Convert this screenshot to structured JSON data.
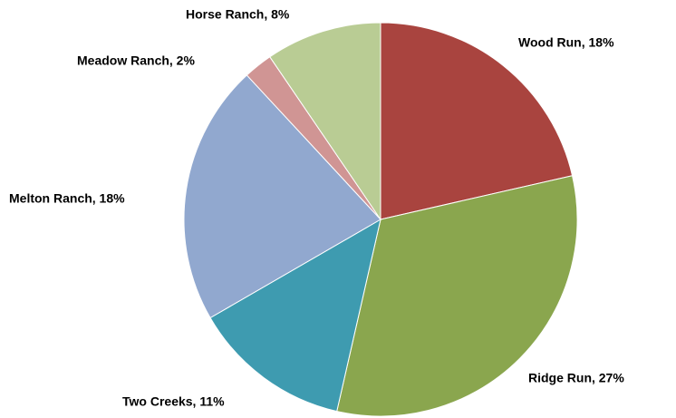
{
  "chart_data": {
    "type": "pie",
    "values": [
      18,
      27,
      11,
      18,
      2,
      8
    ],
    "value_labels": [
      "Wood Run, 18%",
      "Ridge Run, 27%",
      "Two Creeks, 11%",
      "Melton Ranch, 18%",
      "Meadow Ranch, 2%",
      "Horse Ranch, 8%"
    ],
    "colors": [
      "#A9443F",
      "#8AA64E",
      "#3E9BB0",
      "#91A8CF",
      "#D09594",
      "#B9CC94"
    ]
  }
}
